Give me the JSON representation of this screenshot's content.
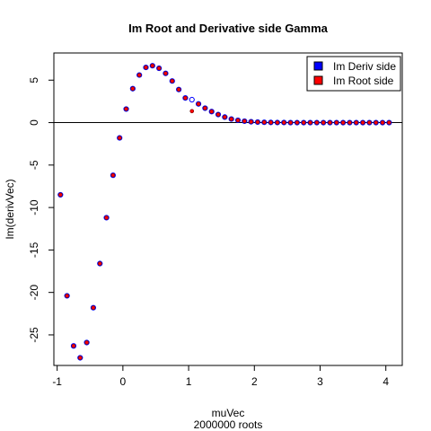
{
  "chart_data": {
    "type": "scatter",
    "title": "Im Root and Derivative side Gamma",
    "xlabel": "muVec",
    "sublabel": "2000000 roots",
    "ylabel": "Im(derivVec)",
    "xlim": [
      -1.05,
      4.25
    ],
    "ylim": [
      -28.6,
      8.2
    ],
    "x_ticks": [
      -1,
      0,
      1,
      2,
      3,
      4
    ],
    "x_tick_labels": [
      "-1",
      "0",
      "1",
      "2",
      "3",
      "4"
    ],
    "y_ticks": [
      -25,
      -20,
      -15,
      -10,
      -5,
      0,
      5
    ],
    "y_tick_labels": [
      "-25",
      "-20",
      "-15",
      "-10",
      "-5",
      "0",
      "5"
    ],
    "hline": 0,
    "grid": false,
    "legend_position": "top-right",
    "x": [
      -0.95,
      -0.85,
      -0.75,
      -0.65,
      -0.55,
      -0.45,
      -0.35,
      -0.25,
      -0.15,
      -0.05,
      0.05,
      0.15,
      0.25,
      0.35,
      0.45,
      0.55,
      0.65,
      0.75,
      0.85,
      0.95,
      1.05,
      1.15,
      1.25,
      1.35,
      1.45,
      1.55,
      1.65,
      1.75,
      1.85,
      1.95,
      2.05,
      2.15,
      2.25,
      2.35,
      2.45,
      2.55,
      2.65,
      2.75,
      2.85,
      2.95,
      3.05,
      3.15,
      3.25,
      3.35,
      3.45,
      3.55,
      3.65,
      3.75,
      3.85,
      3.95,
      4.05
    ],
    "series": [
      {
        "name": "Im Deriv side",
        "color": "#0000ff",
        "values": [
          -8.5,
          -20.4,
          -26.3,
          -27.7,
          -25.9,
          -21.8,
          -16.6,
          -11.2,
          -6.2,
          -1.8,
          1.6,
          4.0,
          5.6,
          6.5,
          6.7,
          6.4,
          5.8,
          4.9,
          3.9,
          2.9,
          2.7,
          2.2,
          1.7,
          1.3,
          0.95,
          0.65,
          0.42,
          0.27,
          0.17,
          0.1,
          0.06,
          0.04,
          0.02,
          0.01,
          0.01,
          0.0,
          0.0,
          0.0,
          0.0,
          0.0,
          0.0,
          0.0,
          0.0,
          0.0,
          0.0,
          0.0,
          0.0,
          0.0,
          0.0,
          0.0,
          0.0
        ]
      },
      {
        "name": "Im Root side",
        "color": "#ff0000",
        "values": [
          -8.5,
          -20.4,
          -26.3,
          -27.7,
          -25.9,
          -21.8,
          -16.6,
          -11.2,
          -6.2,
          -1.8,
          1.6,
          4.0,
          5.6,
          6.5,
          6.7,
          6.4,
          5.8,
          4.9,
          3.9,
          2.9,
          1.35,
          2.2,
          1.7,
          1.3,
          0.95,
          0.65,
          0.42,
          0.27,
          0.17,
          0.1,
          0.06,
          0.04,
          0.02,
          0.01,
          0.01,
          0.0,
          0.0,
          0.0,
          0.0,
          0.0,
          0.0,
          0.0,
          0.0,
          0.0,
          0.0,
          0.0,
          0.0,
          0.0,
          0.0,
          0.0,
          0.0
        ]
      }
    ]
  }
}
